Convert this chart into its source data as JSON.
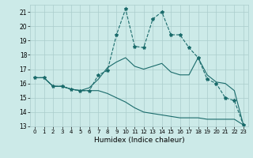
{
  "title": "",
  "xlabel": "Humidex (Indice chaleur)",
  "bg_color": "#cceae8",
  "grid_color": "#aacccc",
  "line_color": "#1a6b6b",
  "xlim": [
    -0.5,
    23.5
  ],
  "ylim": [
    13,
    21.5
  ],
  "yticks": [
    13,
    14,
    15,
    16,
    17,
    18,
    19,
    20,
    21
  ],
  "xticks": [
    0,
    1,
    2,
    3,
    4,
    5,
    6,
    7,
    8,
    9,
    10,
    11,
    12,
    13,
    14,
    15,
    16,
    17,
    18,
    19,
    20,
    21,
    22,
    23
  ],
  "lines": [
    {
      "x": [
        0,
        1,
        2,
        3,
        4,
        5,
        6,
        7,
        8,
        9,
        10,
        11,
        12,
        13,
        14,
        15,
        16,
        17,
        18,
        19,
        20,
        21,
        22,
        23
      ],
      "y": [
        16.4,
        16.4,
        15.8,
        15.8,
        15.6,
        15.5,
        15.5,
        16.6,
        16.9,
        19.4,
        21.2,
        18.6,
        18.5,
        20.5,
        21.0,
        19.4,
        19.4,
        18.5,
        17.8,
        16.3,
        16.0,
        15.0,
        14.8,
        13.1
      ],
      "marker": "*",
      "linestyle": "--"
    },
    {
      "x": [
        0,
        1,
        2,
        3,
        4,
        5,
        6,
        7,
        8,
        9,
        10,
        11,
        12,
        13,
        14,
        15,
        16,
        17,
        18,
        19,
        20,
        21,
        22,
        23
      ],
      "y": [
        16.4,
        16.4,
        15.8,
        15.8,
        15.6,
        15.5,
        15.7,
        16.3,
        17.1,
        17.5,
        17.8,
        17.2,
        17.0,
        17.2,
        17.4,
        16.8,
        16.6,
        16.6,
        17.8,
        16.6,
        16.1,
        16.0,
        15.5,
        13.1
      ],
      "marker": null,
      "linestyle": "-"
    },
    {
      "x": [
        0,
        1,
        2,
        3,
        4,
        5,
        6,
        7,
        8,
        9,
        10,
        11,
        12,
        13,
        14,
        15,
        16,
        17,
        18,
        19,
        20,
        21,
        22,
        23
      ],
      "y": [
        16.4,
        16.4,
        15.8,
        15.8,
        15.6,
        15.5,
        15.5,
        15.5,
        15.3,
        15.0,
        14.7,
        14.3,
        14.0,
        13.9,
        13.8,
        13.7,
        13.6,
        13.6,
        13.6,
        13.5,
        13.5,
        13.5,
        13.5,
        13.1
      ],
      "marker": null,
      "linestyle": "-"
    }
  ]
}
